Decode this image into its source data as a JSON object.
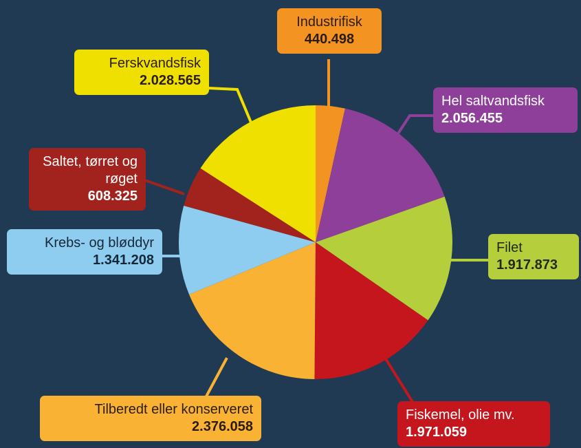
{
  "chart_data": {
    "type": "pie",
    "categories": [
      "Industrifisk",
      "Hel saltvandsfisk",
      "Filet",
      "Fiskemel, olie mv.",
      "Tilberedt eller konserveret",
      "Krebs- og bløddyr",
      "Saltet, tørret og røget",
      "Ferskvandsfisk"
    ],
    "values": [
      440498,
      2056455,
      1917873,
      1971059,
      2376058,
      1341208,
      608325,
      2028565
    ],
    "value_labels": [
      "440.498",
      "2.056.455",
      "1.917.873",
      "1.971.059",
      "2.376.058",
      "1.341.208",
      "608.325",
      "2.028.565"
    ],
    "colors": [
      "#f39321",
      "#8e3f9a",
      "#b5cf3c",
      "#c4161c",
      "#f9b233",
      "#8ecdef",
      "#a2231d",
      "#f0e000"
    ]
  }
}
